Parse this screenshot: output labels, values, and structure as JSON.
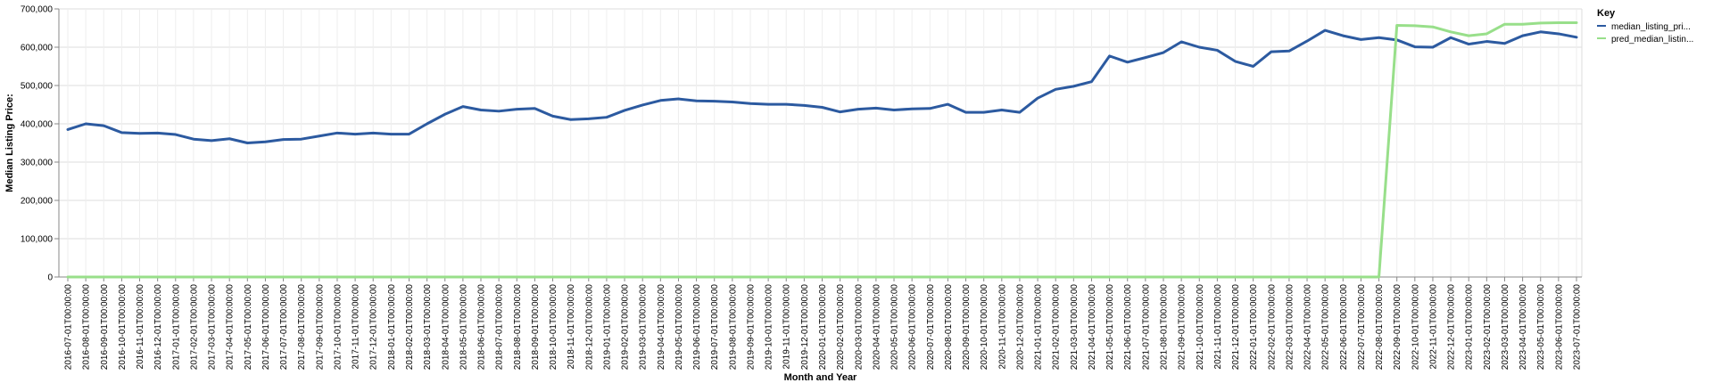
{
  "chart_data": {
    "type": "line",
    "xlabel": "Month and Year",
    "ylabel": "Median Listing Price:",
    "ylim": [
      0,
      700000
    ],
    "y_ticks": [
      "0",
      "100,000",
      "200,000",
      "300,000",
      "400,000",
      "500,000",
      "600,000",
      "700,000"
    ],
    "y_tick_values": [
      0,
      100000,
      200000,
      300000,
      400000,
      500000,
      600000,
      700000
    ],
    "grid": true,
    "legend_position": "right",
    "legend_title": "Key",
    "x": [
      "2016-07-01T00:00:00",
      "2016-08-01T00:00:00",
      "2016-09-01T00:00:00",
      "2016-10-01T00:00:00",
      "2016-11-01T00:00:00",
      "2016-12-01T00:00:00",
      "2017-01-01T00:00:00",
      "2017-02-01T00:00:00",
      "2017-03-01T00:00:00",
      "2017-04-01T00:00:00",
      "2017-05-01T00:00:00",
      "2017-06-01T00:00:00",
      "2017-07-01T00:00:00",
      "2017-08-01T00:00:00",
      "2017-09-01T00:00:00",
      "2017-10-01T00:00:00",
      "2017-11-01T00:00:00",
      "2017-12-01T00:00:00",
      "2018-01-01T00:00:00",
      "2018-02-01T00:00:00",
      "2018-03-01T00:00:00",
      "2018-04-01T00:00:00",
      "2018-05-01T00:00:00",
      "2018-06-01T00:00:00",
      "2018-07-01T00:00:00",
      "2018-08-01T00:00:00",
      "2018-09-01T00:00:00",
      "2018-10-01T00:00:00",
      "2018-11-01T00:00:00",
      "2018-12-01T00:00:00",
      "2019-01-01T00:00:00",
      "2019-02-01T00:00:00",
      "2019-03-01T00:00:00",
      "2019-04-01T00:00:00",
      "2019-05-01T00:00:00",
      "2019-06-01T00:00:00",
      "2019-07-01T00:00:00",
      "2019-08-01T00:00:00",
      "2019-09-01T00:00:00",
      "2019-10-01T00:00:00",
      "2019-11-01T00:00:00",
      "2019-12-01T00:00:00",
      "2020-01-01T00:00:00",
      "2020-02-01T00:00:00",
      "2020-03-01T00:00:00",
      "2020-04-01T00:00:00",
      "2020-05-01T00:00:00",
      "2020-06-01T00:00:00",
      "2020-07-01T00:00:00",
      "2020-08-01T00:00:00",
      "2020-09-01T00:00:00",
      "2020-10-01T00:00:00",
      "2020-11-01T00:00:00",
      "2020-12-01T00:00:00",
      "2021-01-01T00:00:00",
      "2021-02-01T00:00:00",
      "2021-03-01T00:00:00",
      "2021-04-01T00:00:00",
      "2021-05-01T00:00:00",
      "2021-06-01T00:00:00",
      "2021-07-01T00:00:00",
      "2021-08-01T00:00:00",
      "2021-09-01T00:00:00",
      "2021-10-01T00:00:00",
      "2021-11-01T00:00:00",
      "2021-12-01T00:00:00",
      "2022-01-01T00:00:00",
      "2022-02-01T00:00:00",
      "2022-03-01T00:00:00",
      "2022-04-01T00:00:00",
      "2022-05-01T00:00:00",
      "2022-06-01T00:00:00",
      "2022-07-01T00:00:00",
      "2022-08-01T00:00:00",
      "2022-09-01T00:00:00",
      "2022-10-01T00:00:00",
      "2022-11-01T00:00:00",
      "2022-12-01T00:00:00",
      "2023-01-01T00:00:00",
      "2023-02-01T00:00:00",
      "2023-03-01T00:00:00",
      "2023-04-01T00:00:00",
      "2023-05-01T00:00:00",
      "2023-06-01T00:00:00",
      "2023-07-01T00:00:00"
    ],
    "series": [
      {
        "name": "median_listing_pri...",
        "color": "#2c5aa0",
        "values": [
          385000,
          400000,
          395000,
          377000,
          375000,
          376000,
          372000,
          360000,
          356000,
          361000,
          350000,
          353000,
          359000,
          360000,
          368000,
          376000,
          373000,
          376000,
          373000,
          373000,
          400000,
          425000,
          445000,
          436000,
          433000,
          438000,
          440000,
          420000,
          411000,
          413000,
          417000,
          435000,
          449000,
          461000,
          465000,
          460000,
          459000,
          457000,
          453000,
          451000,
          451000,
          448000,
          443000,
          431000,
          438000,
          441000,
          436000,
          439000,
          440000,
          451000,
          430000,
          430000,
          436000,
          430000,
          467000,
          490000,
          498000,
          510000,
          577000,
          561000,
          573000,
          586000,
          614000,
          600000,
          592000,
          563000,
          550000,
          588000,
          590000,
          616000,
          644000,
          630000,
          620000,
          625000,
          619000,
          601000,
          600000,
          625000,
          608000,
          615000,
          610000,
          630000,
          640000,
          635000,
          626000
        ]
      },
      {
        "name": "pred_median_listin...",
        "color": "#98df8a",
        "values": [
          0,
          0,
          0,
          0,
          0,
          0,
          0,
          0,
          0,
          0,
          0,
          0,
          0,
          0,
          0,
          0,
          0,
          0,
          0,
          0,
          0,
          0,
          0,
          0,
          0,
          0,
          0,
          0,
          0,
          0,
          0,
          0,
          0,
          0,
          0,
          0,
          0,
          0,
          0,
          0,
          0,
          0,
          0,
          0,
          0,
          0,
          0,
          0,
          0,
          0,
          0,
          0,
          0,
          0,
          0,
          0,
          0,
          0,
          0,
          0,
          0,
          0,
          0,
          0,
          0,
          0,
          0,
          0,
          0,
          0,
          0,
          0,
          0,
          0,
          657000,
          656000,
          653000,
          640000,
          630000,
          635000,
          660000,
          660000,
          663000,
          664000,
          664000
        ]
      }
    ]
  }
}
